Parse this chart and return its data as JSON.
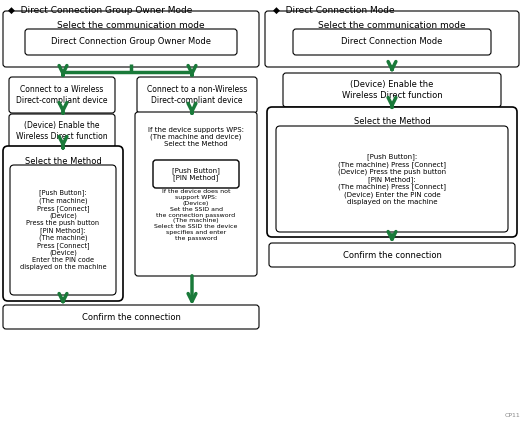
{
  "bg_color": "#ffffff",
  "border_color": "#000000",
  "arrow_color": "#1a7a3a",
  "text_color": "#000000",
  "fig_width": 5.24,
  "fig_height": 4.22,
  "dpi": 100,
  "left_title": "◆  Direct Connection Group Owner Mode",
  "right_title": "◆  Direct Connection Mode",
  "left_top_label": "Select the communication mode",
  "left_inner_label": "Direct Connection Group Owner Mode",
  "branch_left_text": "Connect to a Wireless\nDirect-compliant device",
  "branch_right_text": "Connect to a non-Wireless\nDirect-compliant device",
  "enable_wireless_text": "(Device) Enable the\nWireless Direct function",
  "select_method_title": "Select the Method",
  "select_method_body": "[Push Button]:\n(The machine)\nPress [Connect]\n(Device)\nPress the push button\n[PIN Method]:\n(The machine)\nPress [Connect]\n(Device)\nEnter the PIN code\ndisplayed on the machine",
  "wps_header": "If the device supports WPS:\n(The machine and device)\nSelect the Method",
  "wps_inner": "[Push Button]\n[PIN Method]",
  "wps_lower": "If the device does not\nsupport WPS:\n(Device)\nSet the SSID and\nthe connection password\n(The machine)\nSelect the SSID the device\nspecifies and enter\nthe password",
  "confirm_text": "Confirm the connection",
  "right_top_label": "Select the communication mode",
  "right_inner_label": "Direct Connection Mode",
  "right_enable_text": "(Device) Enable the\nWireless Direct function",
  "right_select_title": "Select the Method",
  "right_select_body": "[Push Button]:\n(The machine) Press [Connect]\n(Device) Press the push button\n[PIN Method]:\n(The machine) Press [Connect]\n(Device) Enter the PIN code\ndisplayed on the machine",
  "right_confirm_text": "Confirm the connection",
  "footnote": "CP11"
}
